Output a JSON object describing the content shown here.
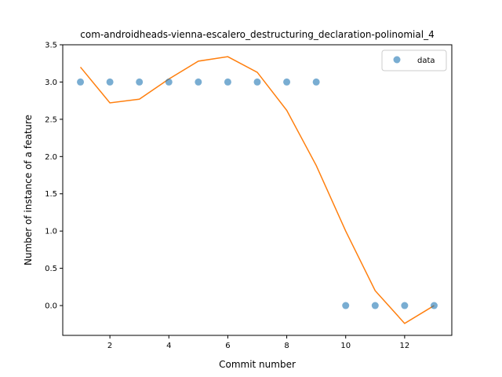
{
  "chart_data": {
    "type": "scatter",
    "title": "com-androidheads-vienna-escalero_destructuring_declaration-polinomial_4",
    "xlabel": "Commit number",
    "ylabel": "Number of instance of a feature",
    "xlim": [
      0.4,
      13.6
    ],
    "ylim": [
      -0.4,
      3.5
    ],
    "xticks": [
      2,
      4,
      6,
      8,
      10,
      12
    ],
    "yticks": [
      0.0,
      0.5,
      1.0,
      1.5,
      2.0,
      2.5,
      3.0,
      3.5
    ],
    "ytick_labels": [
      "0.0",
      "0.5",
      "1.0",
      "1.5",
      "2.0",
      "2.5",
      "3.0",
      "3.5"
    ],
    "grid": false,
    "legend_position": "top-right",
    "series": [
      {
        "name": "data",
        "kind": "scatter",
        "color": "#1f77b4",
        "x": [
          1,
          2,
          3,
          4,
          5,
          6,
          7,
          8,
          9,
          10,
          11,
          12,
          13
        ],
        "y": [
          3,
          3,
          3,
          3,
          3,
          3,
          3,
          3,
          3,
          0,
          0,
          0,
          0
        ]
      },
      {
        "kind": "line",
        "color": "#ff7f0e",
        "x": [
          1,
          2,
          3,
          4,
          5,
          6,
          7,
          8,
          9,
          10,
          11,
          12,
          13
        ],
        "y": [
          3.2,
          2.72,
          2.77,
          3.04,
          3.28,
          3.34,
          3.13,
          2.62,
          1.88,
          1.0,
          0.2,
          -0.24,
          0.0
        ]
      }
    ]
  }
}
